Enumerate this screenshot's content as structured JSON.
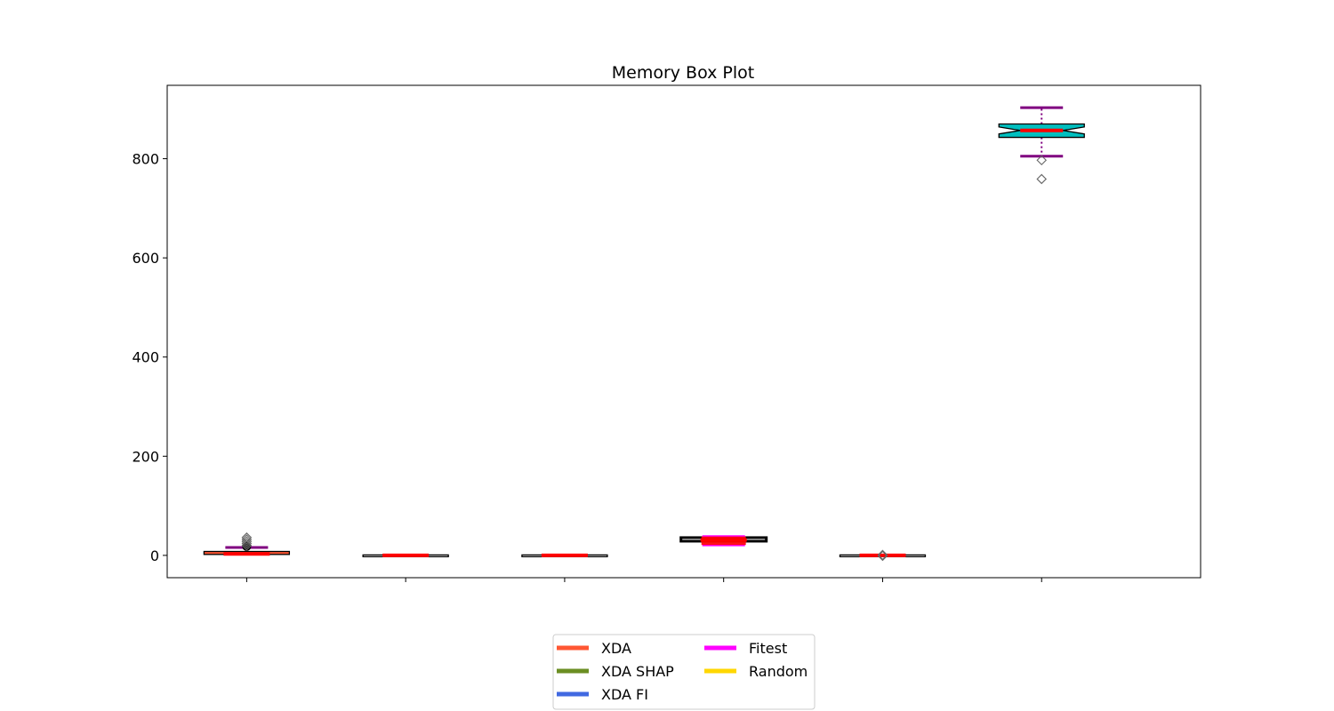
{
  "chart_data": {
    "type": "box",
    "title": "Memory Box Plot",
    "xlabel": "",
    "ylabel": "",
    "ylim": [
      -45,
      948
    ],
    "yticks": [
      0,
      200,
      400,
      600,
      800
    ],
    "grid": false,
    "legend_placement": "bottom-center",
    "boxes": [
      {
        "q1": 1,
        "median": 3,
        "q3": 7,
        "whisker_low": 0,
        "whisker_high": 16,
        "notch_low": 1,
        "notch_high": 5,
        "outliers": [
          20,
          24,
          28,
          32,
          36
        ]
      },
      {
        "q1": 0,
        "median": 0,
        "q3": 0,
        "whisker_low": 0,
        "whisker_high": 0,
        "notch_low": 0,
        "notch_high": 0,
        "outliers": []
      },
      {
        "q1": 0,
        "median": 0,
        "q3": 0,
        "whisker_low": 0,
        "whisker_high": 0,
        "notch_low": 0,
        "notch_high": 0,
        "outliers": []
      },
      {
        "q1": 29,
        "median": 31,
        "q3": 34,
        "whisker_low": 21,
        "whisker_high": 38,
        "notch_low": 30,
        "notch_high": 32,
        "outliers": []
      },
      {
        "q1": 0,
        "median": 0,
        "q3": 0,
        "whisker_low": 0,
        "whisker_high": 0,
        "notch_low": 0,
        "notch_high": 0,
        "outliers": [
          -1,
          1
        ]
      },
      {
        "q1": 843,
        "median": 857,
        "q3": 870,
        "whisker_low": 805,
        "whisker_high": 903,
        "notch_low": 850,
        "notch_high": 864,
        "outliers": [
          797,
          759
        ]
      }
    ],
    "legend": [
      {
        "name": "XDA",
        "color": "#ff5733"
      },
      {
        "name": "XDA SHAP",
        "color": "#6b8e23"
      },
      {
        "name": "XDA FI",
        "color": "#4169e1"
      },
      {
        "name": "Fitest",
        "color": "#ff00ff"
      },
      {
        "name": "Random",
        "color": "#ffd700"
      }
    ],
    "colors": {
      "median": "#ff0000",
      "whisker": "#800080",
      "box_fill_highlight": "#00bfbf",
      "box_edge": "#000000",
      "outlier_edge": "#666666"
    }
  }
}
